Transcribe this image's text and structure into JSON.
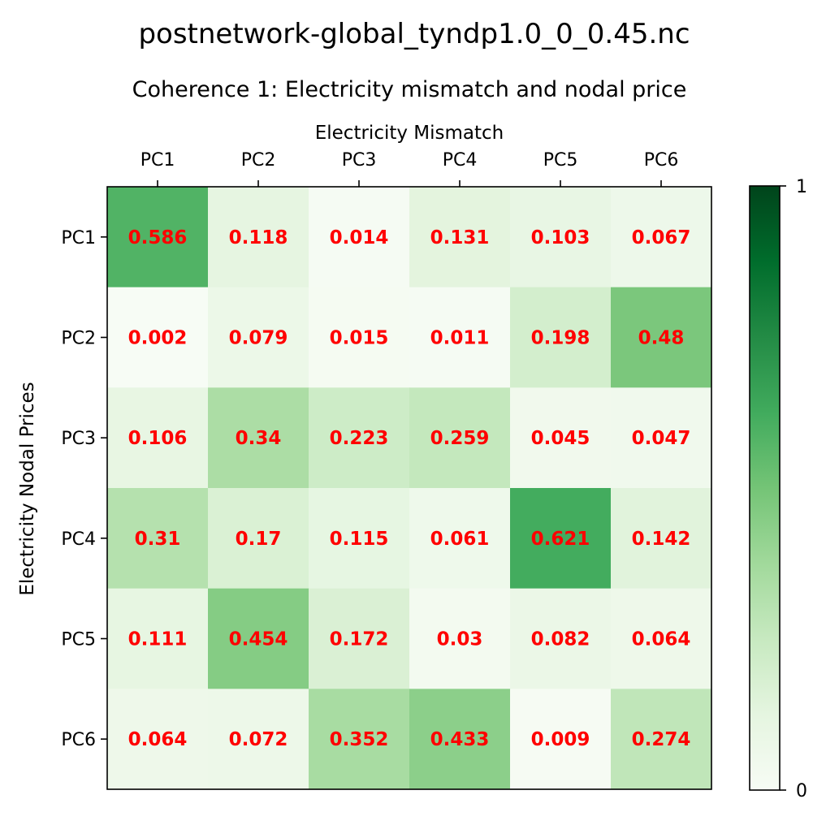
{
  "chart_data": {
    "type": "heatmap",
    "suptitle": "postnetwork-global_tyndp1.0_0_0.45.nc",
    "title": "Coherence 1: Electricity mismatch and nodal price",
    "xlabel": "Electricity Mismatch",
    "ylabel": "Electricity Nodal Prices",
    "x_categories": [
      "PC1",
      "PC2",
      "PC3",
      "PC4",
      "PC5",
      "PC6"
    ],
    "y_categories": [
      "PC1",
      "PC2",
      "PC3",
      "PC4",
      "PC5",
      "PC6"
    ],
    "values": [
      [
        0.586,
        0.118,
        0.014,
        0.131,
        0.103,
        0.067
      ],
      [
        0.002,
        0.079,
        0.015,
        0.011,
        0.198,
        0.48
      ],
      [
        0.106,
        0.34,
        0.223,
        0.259,
        0.045,
        0.047
      ],
      [
        0.31,
        0.17,
        0.115,
        0.061,
        0.621,
        0.142
      ],
      [
        0.111,
        0.454,
        0.172,
        0.03,
        0.082,
        0.064
      ],
      [
        0.064,
        0.072,
        0.352,
        0.433,
        0.009,
        0.274
      ]
    ],
    "value_labels": [
      [
        "0.586",
        "0.118",
        "0.014",
        "0.131",
        "0.103",
        "0.067"
      ],
      [
        "0.002",
        "0.079",
        "0.015",
        "0.011",
        "0.198",
        "0.48"
      ],
      [
        "0.106",
        "0.34",
        "0.223",
        "0.259",
        "0.045",
        "0.047"
      ],
      [
        "0.31",
        "0.17",
        "0.115",
        "0.061",
        "0.621",
        "0.142"
      ],
      [
        "0.111",
        "0.454",
        "0.172",
        "0.03",
        "0.082",
        "0.064"
      ],
      [
        "0.064",
        "0.072",
        "0.352",
        "0.433",
        "0.009",
        "0.274"
      ]
    ],
    "colormap": "Greens",
    "value_range": [
      0,
      1
    ],
    "colorbar_ticks": [
      "0",
      "1"
    ],
    "x_axis_position": "top",
    "annotation_color": "#ff0000",
    "grid": false
  }
}
